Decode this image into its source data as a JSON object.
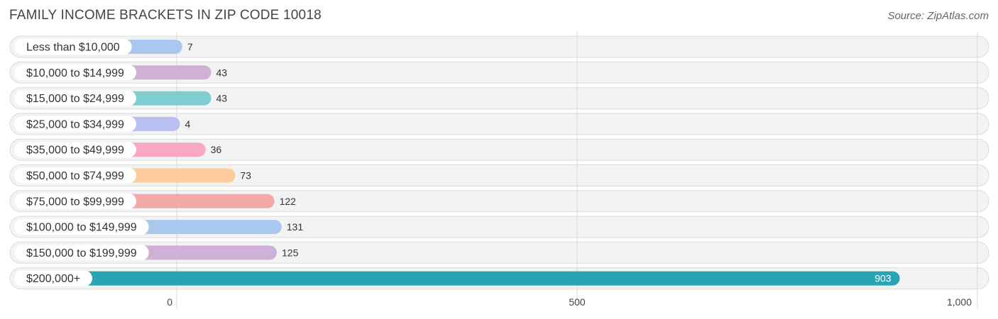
{
  "title": "FAMILY INCOME BRACKETS IN ZIP CODE 10018",
  "source": "Source: ZipAtlas.com",
  "chart_data": {
    "type": "bar",
    "orientation": "horizontal",
    "title": "FAMILY INCOME BRACKETS IN ZIP CODE 10018",
    "xlabel": "",
    "ylabel": "",
    "xlim": [
      0,
      1000
    ],
    "x_ticks": [
      0,
      500,
      1000
    ],
    "x_tick_labels": [
      "0",
      "500",
      "1,000"
    ],
    "grid": true,
    "categories": [
      "Less than $10,000",
      "$10,000 to $14,999",
      "$15,000 to $24,999",
      "$25,000 to $34,999",
      "$35,000 to $49,999",
      "$50,000 to $74,999",
      "$75,000 to $99,999",
      "$100,000 to $149,999",
      "$150,000 to $199,999",
      "$200,000+"
    ],
    "values": [
      7,
      43,
      43,
      4,
      36,
      73,
      122,
      131,
      125,
      903
    ],
    "value_labels": [
      "7",
      "43",
      "43",
      "4",
      "36",
      "73",
      "122",
      "131",
      "125",
      "903"
    ],
    "colors": [
      "#a8c8ee",
      "#cfb0d6",
      "#7fcdd0",
      "#b9bff0",
      "#f8a8c4",
      "#fdcb9c",
      "#f1aaa8",
      "#a8c8ee",
      "#cfb0d6",
      "#27a5b6"
    ]
  }
}
